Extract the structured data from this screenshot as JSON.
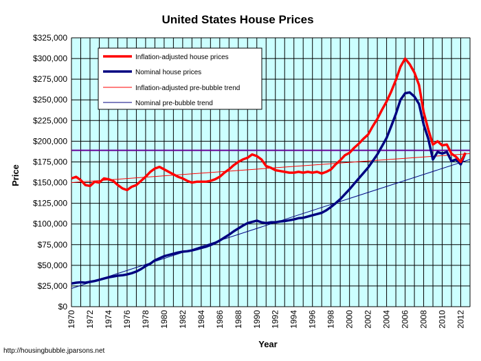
{
  "chart_data": {
    "type": "line",
    "title": "United States House Prices",
    "xlabel": "Year",
    "ylabel": "Price",
    "source": "http://housingbubble.jparsons.net",
    "xlim": [
      1970,
      2013
    ],
    "ylim": [
      0,
      325000
    ],
    "x_ticks": [
      "1970",
      "1972",
      "1974",
      "1976",
      "1978",
      "1980",
      "1982",
      "1984",
      "1986",
      "1988",
      "1990",
      "1992",
      "1994",
      "1996",
      "1998",
      "2000",
      "2002",
      "2004",
      "2006",
      "2008",
      "2010",
      "2012"
    ],
    "y_ticks": [
      "$0",
      "$25,000",
      "$50,000",
      "$75,000",
      "$100,000",
      "$125,000",
      "$150,000",
      "$175,000",
      "$200,000",
      "$225,000",
      "$250,000",
      "$275,000",
      "$300,000",
      "$325,000"
    ],
    "grid": true,
    "legend_position": "top-left",
    "colors": {
      "plot_bg": "#ccffff",
      "inflation": "#ff0000",
      "nominal": "#000080",
      "hline": "#660099"
    },
    "series": [
      {
        "name": "Inflation-adjusted house prices",
        "style": "thick",
        "color": "#ff0000",
        "points": [
          [
            1970,
            155000
          ],
          [
            1970.5,
            157000
          ],
          [
            1971,
            153000
          ],
          [
            1971.5,
            147000
          ],
          [
            1972,
            146000
          ],
          [
            1972.5,
            151000
          ],
          [
            1973,
            150000
          ],
          [
            1973.5,
            155000
          ],
          [
            1974,
            154000
          ],
          [
            1974.5,
            152000
          ],
          [
            1975,
            147000
          ],
          [
            1975.5,
            143000
          ],
          [
            1976,
            141000
          ],
          [
            1976.5,
            145000
          ],
          [
            1977,
            147000
          ],
          [
            1977.5,
            152000
          ],
          [
            1978,
            157000
          ],
          [
            1978.5,
            163000
          ],
          [
            1979,
            167000
          ],
          [
            1979.5,
            169000
          ],
          [
            1980,
            166000
          ],
          [
            1980.5,
            163000
          ],
          [
            1981,
            160000
          ],
          [
            1981.5,
            157000
          ],
          [
            1982,
            155000
          ],
          [
            1982.5,
            152000
          ],
          [
            1983,
            150000
          ],
          [
            1983.5,
            151000
          ],
          [
            1984,
            151000
          ],
          [
            1984.5,
            151000
          ],
          [
            1985,
            152000
          ],
          [
            1985.5,
            154000
          ],
          [
            1986,
            157000
          ],
          [
            1986.5,
            162000
          ],
          [
            1987,
            166000
          ],
          [
            1987.5,
            171000
          ],
          [
            1988,
            175000
          ],
          [
            1988.5,
            178000
          ],
          [
            1989,
            180000
          ],
          [
            1989.5,
            184000
          ],
          [
            1990,
            182000
          ],
          [
            1990.5,
            178000
          ],
          [
            1991,
            170000
          ],
          [
            1991.5,
            168000
          ],
          [
            1992,
            165000
          ],
          [
            1992.5,
            164000
          ],
          [
            1993,
            163000
          ],
          [
            1993.5,
            162000
          ],
          [
            1994,
            162000
          ],
          [
            1994.5,
            163000
          ],
          [
            1995,
            162000
          ],
          [
            1995.5,
            163000
          ],
          [
            1996,
            162000
          ],
          [
            1996.5,
            163000
          ],
          [
            1997,
            161000
          ],
          [
            1997.5,
            163000
          ],
          [
            1998,
            166000
          ],
          [
            1998.5,
            172000
          ],
          [
            1999,
            177000
          ],
          [
            1999.5,
            183000
          ],
          [
            2000,
            186000
          ],
          [
            2000.5,
            192000
          ],
          [
            2001,
            197000
          ],
          [
            2001.5,
            203000
          ],
          [
            2002,
            208000
          ],
          [
            2002.5,
            218000
          ],
          [
            2003,
            227000
          ],
          [
            2003.5,
            238000
          ],
          [
            2004,
            248000
          ],
          [
            2004.5,
            260000
          ],
          [
            2005,
            274000
          ],
          [
            2005.5,
            290000
          ],
          [
            2006,
            300000
          ],
          [
            2006.5,
            293000
          ],
          [
            2007,
            283000
          ],
          [
            2007.5,
            268000
          ],
          [
            2008,
            235000
          ],
          [
            2008.5,
            214000
          ],
          [
            2009,
            196000
          ],
          [
            2009.5,
            200000
          ],
          [
            2010,
            195000
          ],
          [
            2010.5,
            196000
          ],
          [
            2011,
            185000
          ],
          [
            2011.5,
            181000
          ],
          [
            2012,
            175000
          ],
          [
            2012.5,
            186000
          ]
        ]
      },
      {
        "name": "Nominal house prices",
        "style": "thick",
        "color": "#000080",
        "points": [
          [
            1970,
            28000
          ],
          [
            1970.5,
            29000
          ],
          [
            1971,
            29500
          ],
          [
            1971.5,
            29000
          ],
          [
            1972,
            30000
          ],
          [
            1972.5,
            31000
          ],
          [
            1973,
            32500
          ],
          [
            1973.5,
            34000
          ],
          [
            1974,
            35500
          ],
          [
            1974.5,
            36500
          ],
          [
            1975,
            37500
          ],
          [
            1975.5,
            38000
          ],
          [
            1976,
            39000
          ],
          [
            1976.5,
            40500
          ],
          [
            1977,
            42500
          ],
          [
            1977.5,
            45500
          ],
          [
            1978,
            49000
          ],
          [
            1978.5,
            52000
          ],
          [
            1979,
            56000
          ],
          [
            1979.5,
            58500
          ],
          [
            1980,
            61000
          ],
          [
            1980.5,
            62500
          ],
          [
            1981,
            64000
          ],
          [
            1981.5,
            65500
          ],
          [
            1982,
            66500
          ],
          [
            1982.5,
            67000
          ],
          [
            1983,
            68000
          ],
          [
            1983.5,
            69500
          ],
          [
            1984,
            71000
          ],
          [
            1984.5,
            72500
          ],
          [
            1985,
            74500
          ],
          [
            1985.5,
            77000
          ],
          [
            1986,
            80000
          ],
          [
            1986.5,
            83500
          ],
          [
            1987,
            87000
          ],
          [
            1987.5,
            91000
          ],
          [
            1988,
            94500
          ],
          [
            1988.5,
            98000
          ],
          [
            1989,
            101000
          ],
          [
            1989.5,
            102500
          ],
          [
            1990,
            104000
          ],
          [
            1990.5,
            102000
          ],
          [
            1991,
            101000
          ],
          [
            1991.5,
            102000
          ],
          [
            1992,
            102000
          ],
          [
            1992.5,
            103000
          ],
          [
            1993,
            103500
          ],
          [
            1993.5,
            104500
          ],
          [
            1994,
            105500
          ],
          [
            1994.5,
            107000
          ],
          [
            1995,
            107500
          ],
          [
            1995.5,
            109000
          ],
          [
            1996,
            110500
          ],
          [
            1996.5,
            112000
          ],
          [
            1997,
            113500
          ],
          [
            1997.5,
            116500
          ],
          [
            1998,
            120500
          ],
          [
            1998.5,
            125000
          ],
          [
            1999,
            130000
          ],
          [
            1999.5,
            136000
          ],
          [
            2000,
            142000
          ],
          [
            2000.5,
            148500
          ],
          [
            2001,
            155000
          ],
          [
            2001.5,
            161500
          ],
          [
            2002,
            168000
          ],
          [
            2002.5,
            176000
          ],
          [
            2003,
            184000
          ],
          [
            2003.5,
            194000
          ],
          [
            2004,
            204000
          ],
          [
            2004.5,
            218000
          ],
          [
            2005,
            233000
          ],
          [
            2005.5,
            250000
          ],
          [
            2006,
            258000
          ],
          [
            2006.5,
            259000
          ],
          [
            2007,
            254000
          ],
          [
            2007.5,
            245000
          ],
          [
            2008,
            220000
          ],
          [
            2008.5,
            203000
          ],
          [
            2009,
            178000
          ],
          [
            2009.5,
            187000
          ],
          [
            2010,
            185000
          ],
          [
            2010.5,
            187000
          ],
          [
            2011,
            176000
          ],
          [
            2011.5,
            178000
          ],
          [
            2012,
            172000
          ],
          [
            2012.5,
            186000
          ]
        ]
      },
      {
        "name": "Inflation-adjusted pre-bubble trend",
        "style": "thin",
        "color": "#ff0000",
        "points": [
          [
            1970,
            150000
          ],
          [
            2013,
            185000
          ]
        ]
      },
      {
        "name": "Nominal pre-bubble trend",
        "style": "thin",
        "color": "#000080",
        "points": [
          [
            1970,
            22000
          ],
          [
            2013,
            178000
          ]
        ]
      }
    ],
    "reference_line": {
      "y": 189000,
      "color": "#660099"
    }
  }
}
